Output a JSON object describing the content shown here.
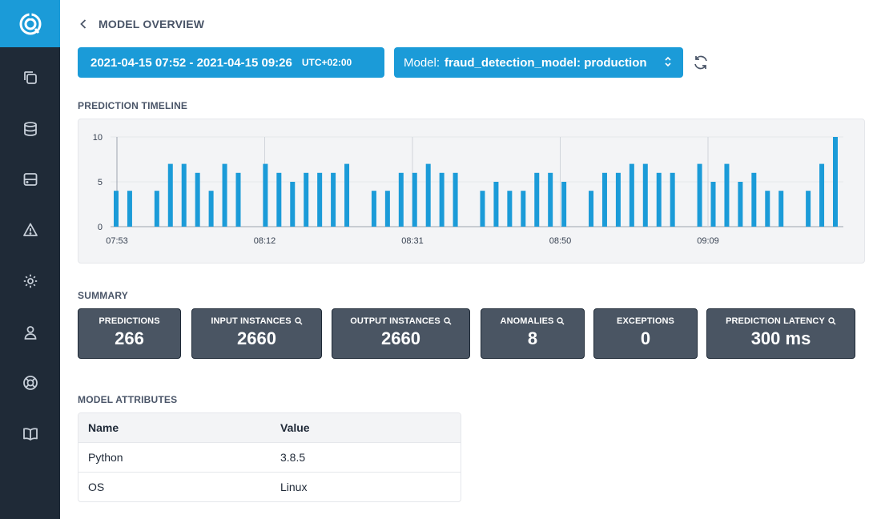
{
  "icons": {
    "logo": "app-logo-icon",
    "nav": [
      "copy-icon",
      "database-icon",
      "server-icon",
      "alert-triangle-icon",
      "settings-gear-icon",
      "user-icon",
      "lifebuoy-icon",
      "book-icon"
    ]
  },
  "header": {
    "title": "MODEL OVERVIEW"
  },
  "toolbar": {
    "date_range": "2021-04-15 07:52 - 2021-04-15 09:26",
    "timezone": "UTC+02:00",
    "model_label": "Model:",
    "model_value": "fraud_detection_model: production"
  },
  "timeline": {
    "title": "PREDICTION TIMELINE"
  },
  "chart_data": {
    "type": "bar",
    "title": "PREDICTION TIMELINE",
    "x_tick_labels": [
      "07:53",
      "08:12",
      "08:31",
      "08:50",
      "09:09"
    ],
    "y_ticks": [
      0,
      5,
      10
    ],
    "ylim": [
      0,
      10
    ],
    "grid": true,
    "color": "#1b9bd8",
    "values": [
      4,
      4,
      0,
      4,
      7,
      7,
      6,
      4,
      7,
      6,
      0,
      7,
      6,
      5,
      6,
      6,
      6,
      7,
      0,
      4,
      4,
      6,
      6,
      7,
      6,
      6,
      0,
      4,
      5,
      4,
      4,
      6,
      6,
      5,
      0,
      4,
      6,
      6,
      7,
      7,
      6,
      6,
      0,
      7,
      5,
      7,
      5,
      6,
      4,
      4,
      0,
      4,
      7,
      10
    ]
  },
  "summary": {
    "title": "SUMMARY",
    "cards": [
      {
        "label": "PREDICTIONS",
        "value": "266"
      },
      {
        "label": "INPUT INSTANCES",
        "value": "2660"
      },
      {
        "label": "OUTPUT INSTANCES",
        "value": "2660"
      },
      {
        "label": "ANOMALIES",
        "value": "8"
      },
      {
        "label": "EXCEPTIONS",
        "value": "0"
      },
      {
        "label": "PREDICTION LATENCY",
        "value": "300 ms"
      }
    ]
  },
  "attributes": {
    "title": "MODEL ATTRIBUTES",
    "columns": [
      "Name",
      "Value"
    ],
    "rows": [
      [
        "Python",
        "3.8.5"
      ],
      [
        "OS",
        "Linux"
      ]
    ]
  }
}
